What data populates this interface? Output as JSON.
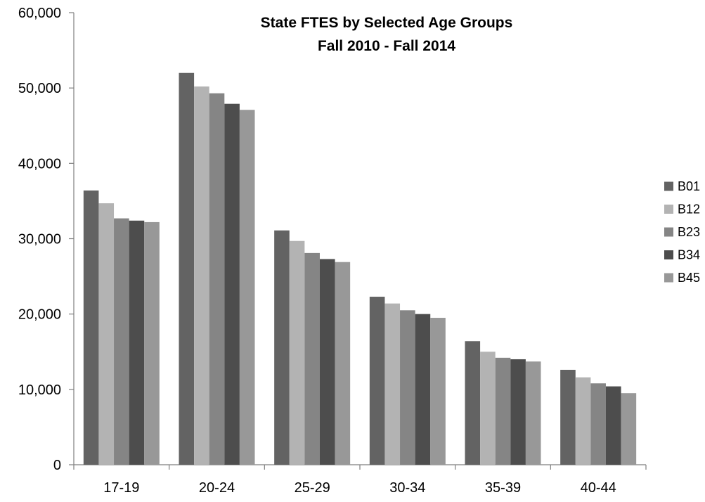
{
  "chart_data": {
    "type": "bar",
    "title": [
      "State FTES by Selected Age Groups",
      "Fall 2010 - Fall 2014"
    ],
    "xlabel": "",
    "ylabel": "",
    "ylim": [
      0,
      60000
    ],
    "y_ticks": [
      0,
      10000,
      20000,
      30000,
      40000,
      50000,
      60000
    ],
    "y_tick_labels": [
      "0",
      "10,000",
      "20,000",
      "30,000",
      "40,000",
      "50,000",
      "60,000"
    ],
    "categories": [
      "17-19",
      "20-24",
      "25-29",
      "30-34",
      "35-39",
      "40-44"
    ],
    "series": [
      {
        "name": "B01",
        "color": "#636363",
        "values": [
          36400,
          52000,
          31100,
          22300,
          16400,
          12600
        ]
      },
      {
        "name": "B12",
        "color": "#b3b3b3",
        "values": [
          34700,
          50200,
          29700,
          21400,
          15000,
          11600
        ]
      },
      {
        "name": "B23",
        "color": "#858585",
        "values": [
          32700,
          49300,
          28100,
          20500,
          14200,
          10800
        ]
      },
      {
        "name": "B34",
        "color": "#4d4d4d",
        "values": [
          32400,
          47900,
          27300,
          20000,
          14000,
          10400
        ]
      },
      {
        "name": "B45",
        "color": "#989898",
        "values": [
          32200,
          47100,
          26900,
          19500,
          13700,
          9500
        ]
      }
    ],
    "grid": false,
    "legend_position": "right"
  }
}
